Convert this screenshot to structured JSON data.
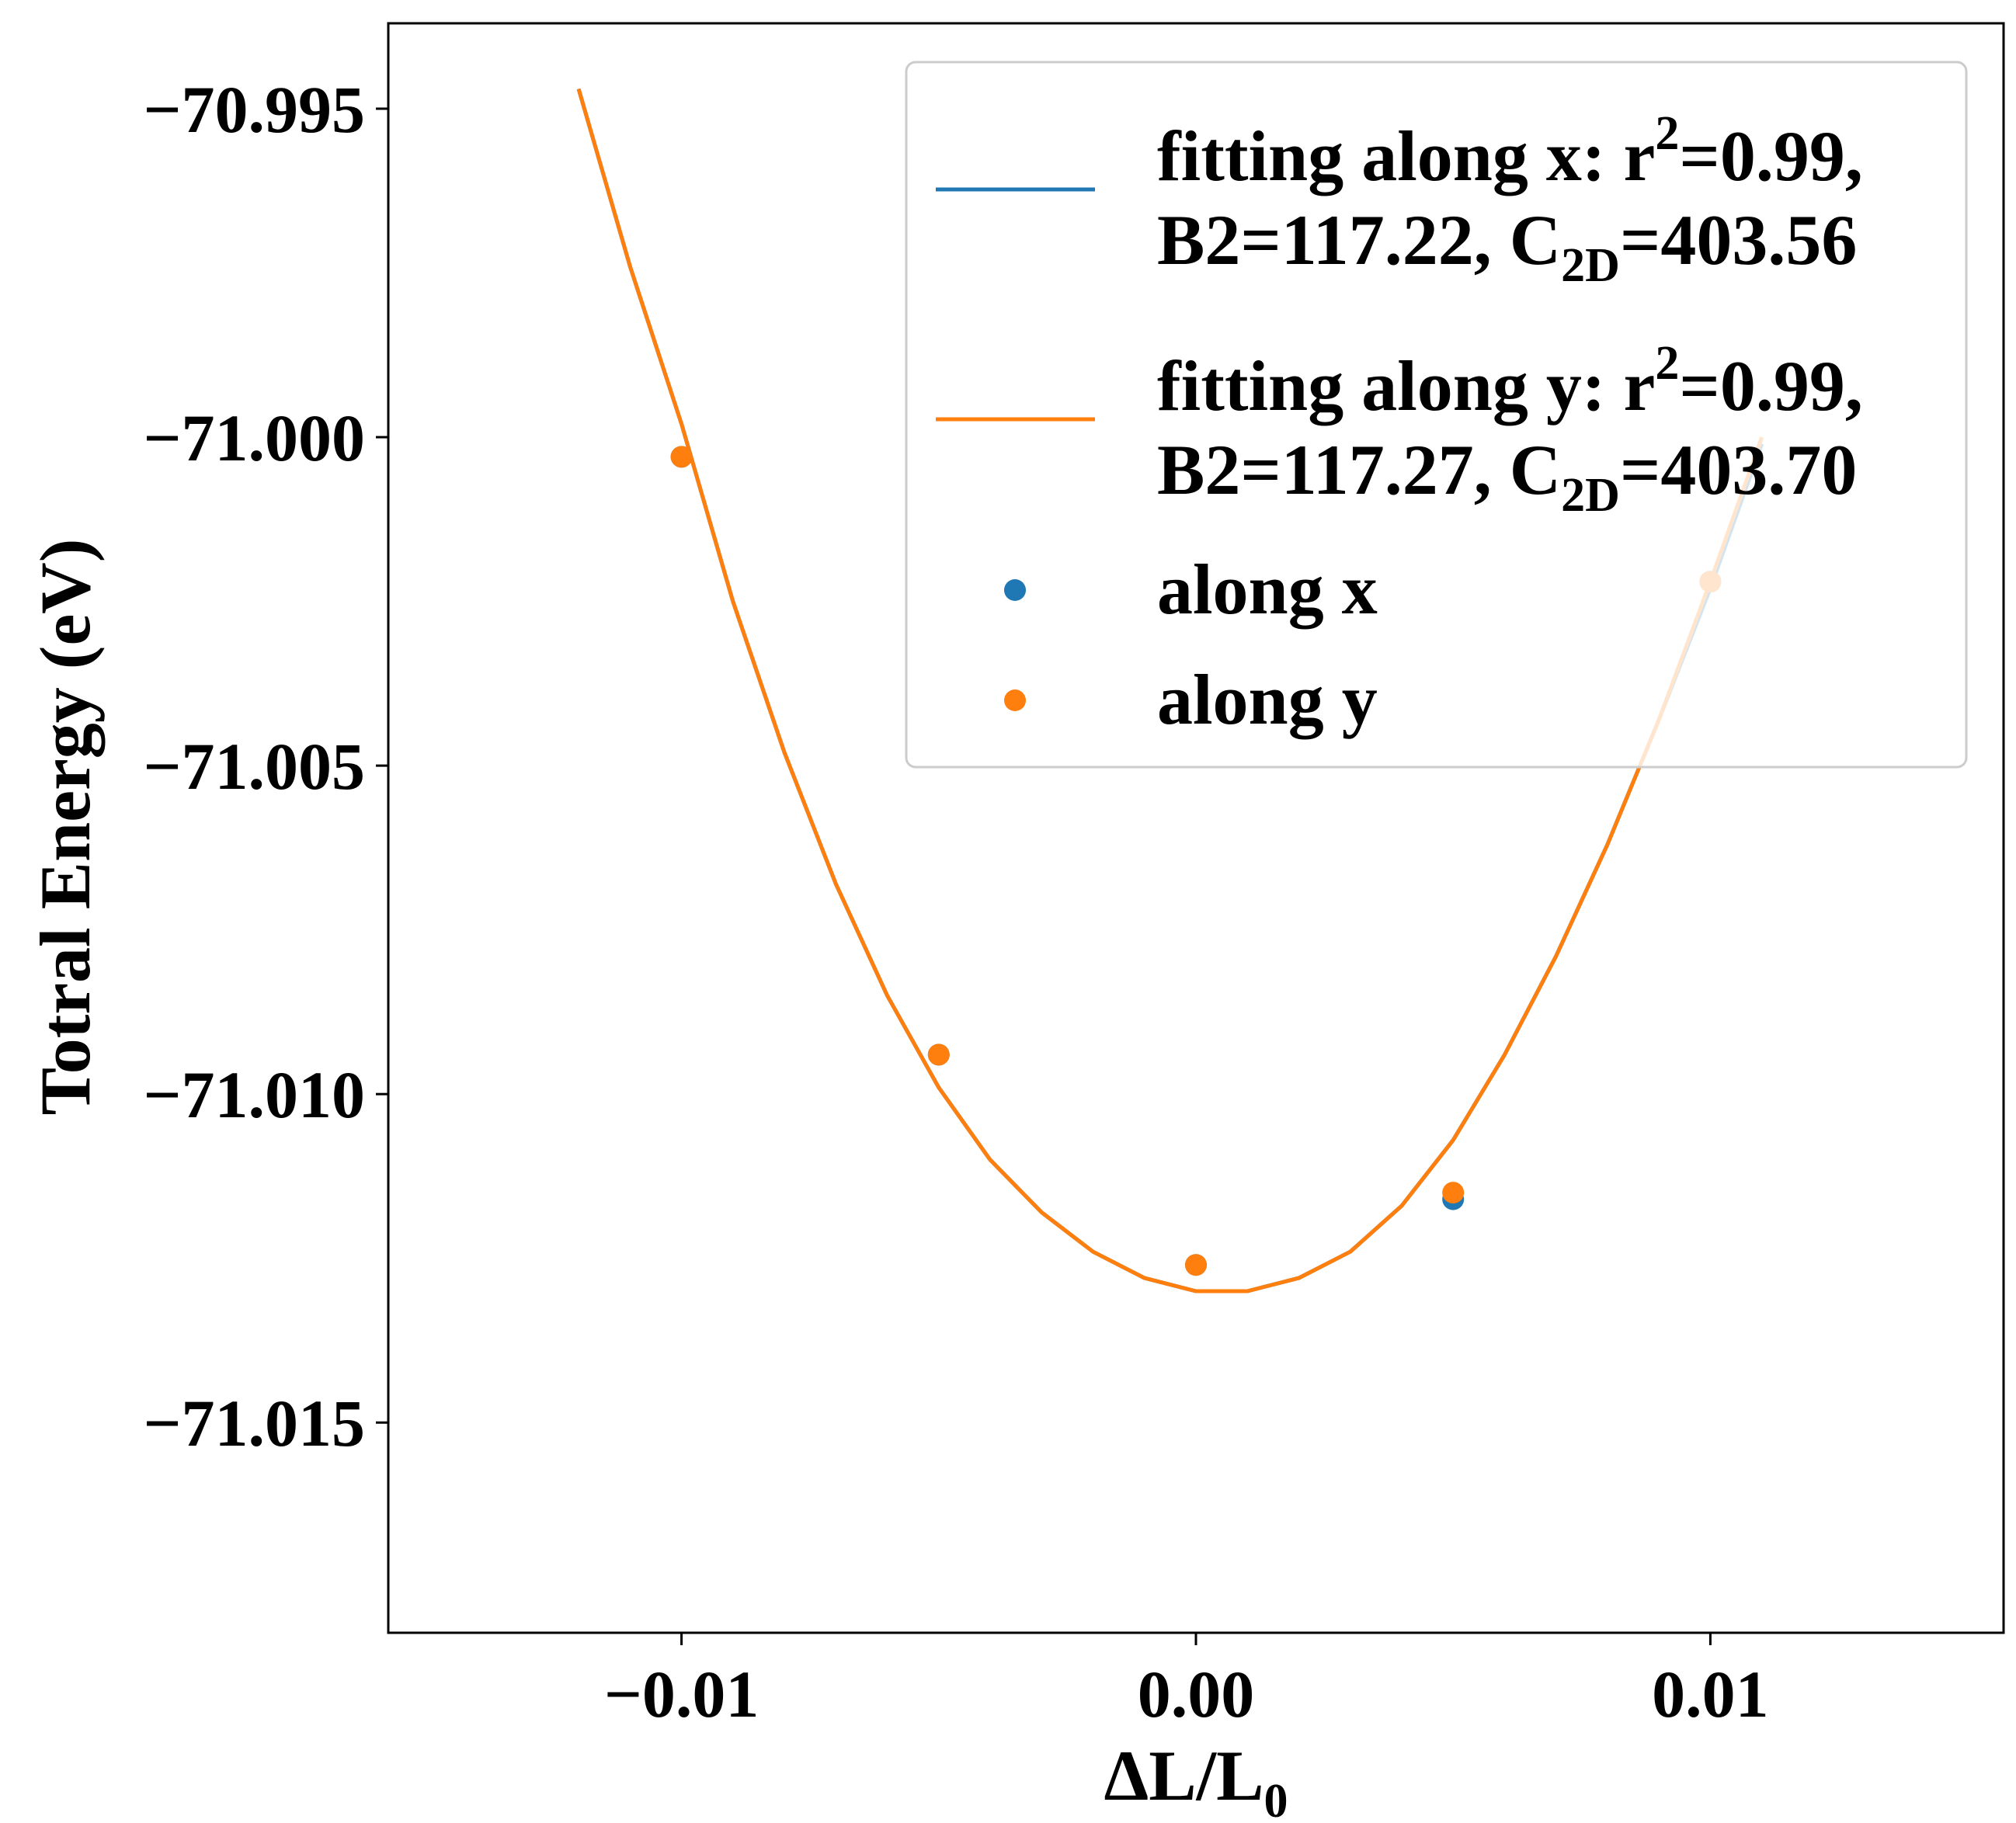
{
  "chart_data": {
    "type": "scatter",
    "xlabel": {
      "main": "ΔL/L",
      "sub": "0"
    },
    "ylabel": "Totral Energy (eV)",
    "xlim": [
      -0.0157,
      0.0157
    ],
    "ylim": [
      -71.0182,
      -70.9937
    ],
    "xticks": [
      -0.01,
      0.0,
      0.01
    ],
    "xtick_labels": [
      "−0.01",
      "0.00",
      "0.01"
    ],
    "yticks": [
      -70.995,
      -71.0,
      -71.005,
      -71.01,
      -71.015
    ],
    "ytick_labels": [
      "−70.995",
      "−71.000",
      "−71.005",
      "−71.010",
      "−71.015"
    ],
    "grid": false,
    "legend_placement": "top-right",
    "colors": {
      "x": "#1f77b4",
      "y": "#ff7f0e"
    },
    "series": [
      {
        "name": "fitting along x",
        "kind": "line",
        "color": "#1f77b4",
        "x": [
          -0.012,
          -0.011,
          -0.01,
          -0.009,
          -0.008,
          -0.007,
          -0.006,
          -0.005,
          -0.004,
          -0.003,
          -0.002,
          -0.001,
          0.0,
          0.001,
          0.002,
          0.003,
          0.004,
          0.005,
          0.006,
          0.007,
          0.008,
          0.009,
          0.01,
          0.011
        ],
        "y": [
          -70.9947,
          -70.9974,
          -70.9998,
          -71.0025,
          -71.0048,
          -71.0068,
          -71.0085,
          -71.0099,
          -71.011,
          -71.0118,
          -71.0124,
          -71.0128,
          -71.013,
          -71.013,
          -71.0128,
          -71.0124,
          -71.0117,
          -71.0107,
          -71.0094,
          -71.0079,
          -71.0062,
          -71.0043,
          -71.0023,
          -71.0001
        ]
      },
      {
        "name": "fitting along y",
        "kind": "line",
        "color": "#ff7f0e",
        "x": [
          -0.012,
          -0.011,
          -0.01,
          -0.009,
          -0.008,
          -0.007,
          -0.006,
          -0.005,
          -0.004,
          -0.003,
          -0.002,
          -0.001,
          0.0,
          0.001,
          0.002,
          0.003,
          0.004,
          0.005,
          0.006,
          0.007,
          0.008,
          0.009,
          0.01,
          0.011
        ],
        "y": [
          -70.9947,
          -70.9974,
          -70.9998,
          -71.0025,
          -71.0048,
          -71.0068,
          -71.0085,
          -71.0099,
          -71.011,
          -71.0118,
          -71.0124,
          -71.0128,
          -71.013,
          -71.013,
          -71.0128,
          -71.0124,
          -71.0117,
          -71.0107,
          -71.0094,
          -71.0079,
          -71.0062,
          -71.0043,
          -71.0022,
          -71.0
        ]
      },
      {
        "name": "along x",
        "kind": "scatter",
        "color": "#1f77b4",
        "x": [
          -0.01,
          -0.005,
          0.0,
          0.005,
          0.01
        ],
        "y": [
          -71.0003,
          -71.0094,
          -71.0126,
          -71.0116,
          -71.0022
        ]
      },
      {
        "name": "along y",
        "kind": "scatter",
        "color": "#ff7f0e",
        "x": [
          -0.01,
          -0.005,
          0.0,
          0.005,
          0.01
        ],
        "y": [
          -71.0003,
          -71.0094,
          -71.0126,
          -71.0115,
          -71.0022
        ]
      }
    ],
    "legend": [
      {
        "kind": "line",
        "color": "#1f77b4",
        "line1": [
          "fitting along x: r",
          "2",
          "=0.99,"
        ],
        "line2": [
          "B2=117.22, C",
          "2D",
          "=403.56"
        ]
      },
      {
        "kind": "line",
        "color": "#ff7f0e",
        "line1": [
          "fitting along y: r",
          "2",
          "=0.99,"
        ],
        "line2": [
          "B2=117.27, C",
          "2D",
          "=403.70"
        ]
      },
      {
        "kind": "scatter",
        "color": "#1f77b4",
        "label": "along x"
      },
      {
        "kind": "scatter",
        "color": "#ff7f0e",
        "label": "along y"
      }
    ]
  }
}
